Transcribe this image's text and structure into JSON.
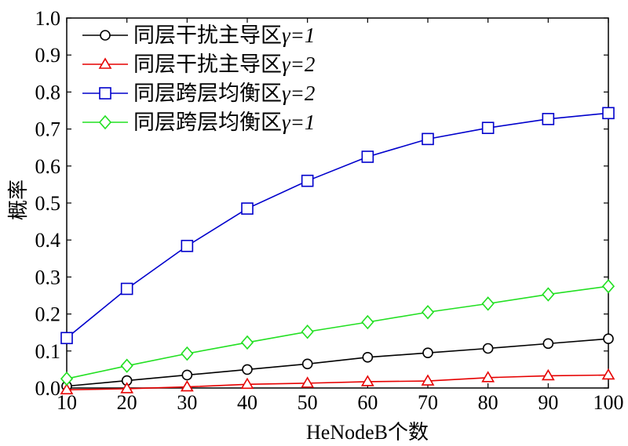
{
  "chart_data": {
    "type": "line",
    "title": "",
    "xlabel": "HeNodeB个数",
    "ylabel": "概率",
    "x": [
      10,
      20,
      30,
      40,
      50,
      60,
      70,
      80,
      90,
      100
    ],
    "xlim": [
      10,
      100
    ],
    "ylim": [
      0,
      1.0
    ],
    "xticks": [
      "10",
      "20",
      "30",
      "40",
      "50",
      "60",
      "70",
      "80",
      "90",
      "100"
    ],
    "yticks": [
      "0.0",
      "0.1",
      "0.2",
      "0.3",
      "0.4",
      "0.5",
      "0.6",
      "0.7",
      "0.8",
      "0.9",
      "1.0"
    ],
    "grid": false,
    "legend_position": "top-left",
    "series": [
      {
        "name": "同层干扰主导区",
        "gamma_label": "γ=1",
        "color": "#000000",
        "marker": "circle",
        "values": [
          0.005,
          0.02,
          0.035,
          0.05,
          0.065,
          0.083,
          0.095,
          0.107,
          0.12,
          0.133
        ]
      },
      {
        "name": "同层干扰主导区",
        "gamma_label": "γ=2",
        "color": "#e60000",
        "marker": "triangle",
        "values": [
          -0.005,
          -0.002,
          0.003,
          0.01,
          0.013,
          0.017,
          0.019,
          0.028,
          0.033,
          0.035
        ]
      },
      {
        "name": "同层跨层均衡区",
        "gamma_label": "γ=2",
        "color": "#0000cc",
        "marker": "square",
        "values": [
          0.135,
          0.268,
          0.384,
          0.485,
          0.56,
          0.625,
          0.673,
          0.703,
          0.727,
          0.743
        ]
      },
      {
        "name": "同层跨层均衡区",
        "gamma_label": "γ=1",
        "color": "#22e022",
        "marker": "diamond",
        "values": [
          0.025,
          0.06,
          0.093,
          0.123,
          0.152,
          0.178,
          0.205,
          0.228,
          0.253,
          0.275
        ]
      }
    ]
  }
}
